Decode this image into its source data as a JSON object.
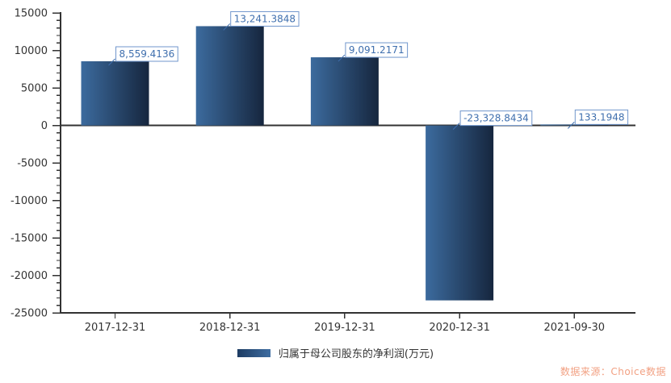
{
  "chart_data": {
    "type": "bar",
    "title": "",
    "xlabel": "",
    "ylabel": "",
    "categories": [
      "2017-12-31",
      "2018-12-31",
      "2019-12-31",
      "2020-12-31",
      "2021-09-30"
    ],
    "series": [
      {
        "name": "归属于母公司股东的净利润(万元)",
        "values": [
          8559.4136,
          13241.3848,
          9091.2171,
          -23328.8434,
          133.1948
        ]
      }
    ],
    "data_labels": [
      "8,559.4136",
      "13,241.3848",
      "9,091.2171",
      "-23,328.8434",
      "133.1948"
    ],
    "ylim": [
      -25000,
      15000
    ],
    "y_major_interval": 5000,
    "y_minor_interval": 1000,
    "y_tick_labels": [
      "15000",
      "10000",
      "5000",
      "0",
      "-5000",
      "-10000",
      "-15000",
      "-20000",
      "-25000"
    ],
    "grid": false,
    "legend_position": "bottom"
  },
  "legend": {
    "label": "归属于母公司股东的净利润(万元)"
  },
  "source": {
    "text": "数据来源：Choice数据",
    "color": "#f2a183"
  },
  "colors": {
    "bar_gradient_start": "#3c6b9e",
    "bar_gradient_end": "#16263e",
    "axis": "#333333",
    "tick_label": "#333333",
    "x_label": "#333333",
    "data_label_text": "#3f6fae",
    "data_label_border": "#7096cc",
    "data_label_bg": "#ffffff",
    "legend_swatch_start": "#1d3c63",
    "legend_swatch_end": "#3e6da1"
  }
}
